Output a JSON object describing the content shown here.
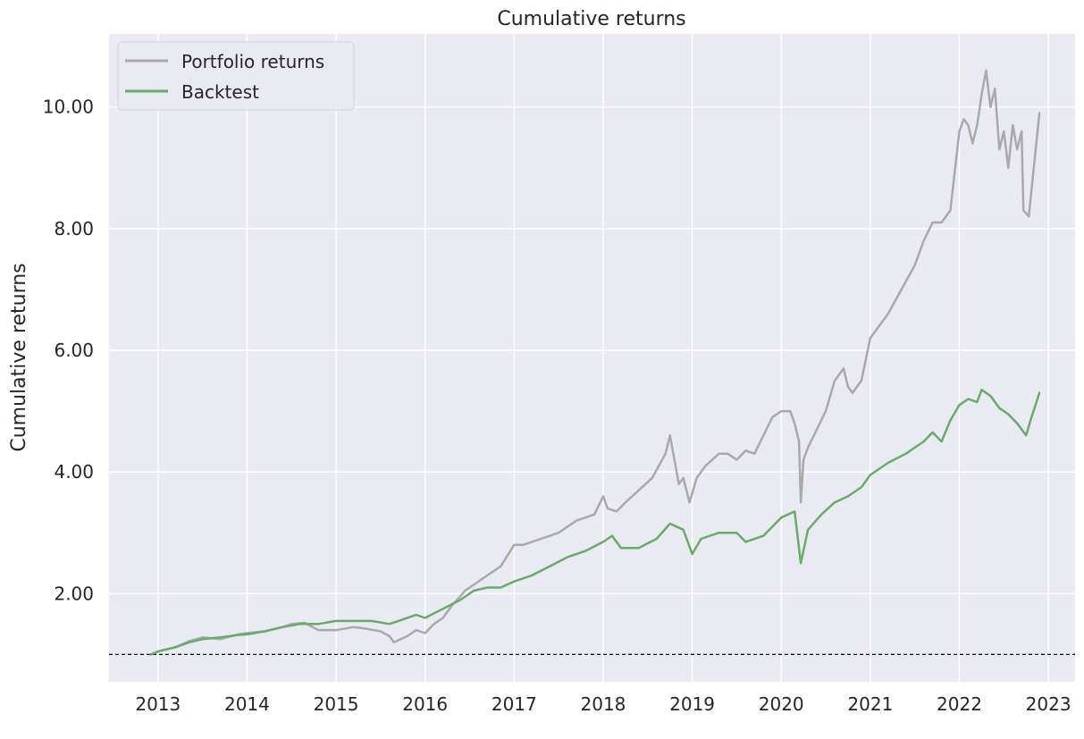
{
  "chart_data": {
    "type": "line",
    "title": "Cumulative returns",
    "xlabel": "",
    "ylabel": "Cumulative returns",
    "xlim": [
      2012.45,
      2023.3
    ],
    "ylim": [
      0.55,
      11.2
    ],
    "xticks": [
      2013,
      2014,
      2015,
      2016,
      2017,
      2018,
      2019,
      2020,
      2021,
      2022,
      2023
    ],
    "xtick_labels": [
      "2013",
      "2014",
      "2015",
      "2016",
      "2017",
      "2018",
      "2019",
      "2020",
      "2021",
      "2022",
      "2023"
    ],
    "yticks": [
      2,
      4,
      6,
      8,
      10
    ],
    "ytick_labels": [
      "2.00",
      "4.00",
      "6.00",
      "8.00",
      "10.00"
    ],
    "grid": true,
    "legend": "top-left",
    "baseline": 1.0,
    "series": [
      {
        "name": "Portfolio returns",
        "color": "#a9a9a9",
        "x": [
          2012.92,
          2013.0,
          2013.2,
          2013.35,
          2013.5,
          2013.7,
          2013.9,
          2014.0,
          2014.2,
          2014.4,
          2014.5,
          2014.65,
          2014.8,
          2015.0,
          2015.2,
          2015.35,
          2015.5,
          2015.6,
          2015.65,
          2015.8,
          2015.9,
          2016.0,
          2016.1,
          2016.2,
          2016.3,
          2016.45,
          2016.55,
          2016.7,
          2016.85,
          2017.0,
          2017.1,
          2017.3,
          2017.5,
          2017.7,
          2017.9,
          2018.0,
          2018.05,
          2018.15,
          2018.25,
          2018.4,
          2018.55,
          2018.7,
          2018.75,
          2018.8,
          2018.85,
          2018.9,
          2018.97,
          2019.05,
          2019.15,
          2019.3,
          2019.4,
          2019.5,
          2019.6,
          2019.7,
          2019.8,
          2019.9,
          2020.0,
          2020.1,
          2020.15,
          2020.2,
          2020.22,
          2020.25,
          2020.3,
          2020.4,
          2020.5,
          2020.6,
          2020.7,
          2020.75,
          2020.8,
          2020.9,
          2021.0,
          2021.1,
          2021.2,
          2021.35,
          2021.5,
          2021.6,
          2021.7,
          2021.8,
          2021.9,
          2022.0,
          2022.05,
          2022.1,
          2022.15,
          2022.2,
          2022.25,
          2022.3,
          2022.35,
          2022.4,
          2022.45,
          2022.5,
          2022.55,
          2022.6,
          2022.65,
          2022.7,
          2022.72,
          2022.78,
          2022.85,
          2022.9
        ],
        "values": [
          1.0,
          1.05,
          1.12,
          1.22,
          1.28,
          1.25,
          1.33,
          1.35,
          1.38,
          1.45,
          1.5,
          1.52,
          1.4,
          1.4,
          1.45,
          1.42,
          1.38,
          1.3,
          1.2,
          1.3,
          1.4,
          1.35,
          1.5,
          1.6,
          1.8,
          2.05,
          2.15,
          2.3,
          2.45,
          2.8,
          2.8,
          2.9,
          3.0,
          3.2,
          3.3,
          3.6,
          3.4,
          3.35,
          3.5,
          3.7,
          3.9,
          4.3,
          4.6,
          4.2,
          3.8,
          3.9,
          3.5,
          3.9,
          4.1,
          4.3,
          4.3,
          4.2,
          4.35,
          4.3,
          4.6,
          4.9,
          5.0,
          5.0,
          4.8,
          4.5,
          3.5,
          4.2,
          4.4,
          4.7,
          5.0,
          5.5,
          5.7,
          5.4,
          5.3,
          5.5,
          6.2,
          6.4,
          6.6,
          7.0,
          7.4,
          7.8,
          8.1,
          8.1,
          8.3,
          9.6,
          9.8,
          9.7,
          9.4,
          9.7,
          10.2,
          10.6,
          10.0,
          10.3,
          9.3,
          9.6,
          9.0,
          9.7,
          9.3,
          9.6,
          8.3,
          8.2,
          9.2,
          9.9
        ]
      },
      {
        "name": "Backtest",
        "color": "#6aaa6a",
        "x": [
          2012.92,
          2013.0,
          2013.2,
          2013.35,
          2013.5,
          2013.7,
          2013.9,
          2014.0,
          2014.2,
          2014.4,
          2014.6,
          2014.8,
          2015.0,
          2015.2,
          2015.4,
          2015.6,
          2015.7,
          2015.9,
          2016.0,
          2016.2,
          2016.4,
          2016.55,
          2016.7,
          2016.85,
          2017.0,
          2017.2,
          2017.4,
          2017.6,
          2017.8,
          2018.0,
          2018.1,
          2018.2,
          2018.4,
          2018.6,
          2018.75,
          2018.9,
          2019.0,
          2019.1,
          2019.3,
          2019.5,
          2019.6,
          2019.8,
          2020.0,
          2020.15,
          2020.22,
          2020.3,
          2020.45,
          2020.6,
          2020.75,
          2020.9,
          2021.0,
          2021.2,
          2021.4,
          2021.6,
          2021.7,
          2021.8,
          2021.9,
          2022.0,
          2022.1,
          2022.2,
          2022.25,
          2022.35,
          2022.45,
          2022.55,
          2022.65,
          2022.75,
          2022.8,
          2022.9
        ],
        "values": [
          1.0,
          1.05,
          1.12,
          1.2,
          1.25,
          1.28,
          1.32,
          1.33,
          1.38,
          1.45,
          1.5,
          1.5,
          1.55,
          1.55,
          1.55,
          1.5,
          1.55,
          1.65,
          1.6,
          1.75,
          1.9,
          2.05,
          2.1,
          2.1,
          2.2,
          2.3,
          2.45,
          2.6,
          2.7,
          2.85,
          2.95,
          2.75,
          2.75,
          2.9,
          3.15,
          3.05,
          2.65,
          2.9,
          3.0,
          3.0,
          2.85,
          2.95,
          3.25,
          3.35,
          2.5,
          3.05,
          3.3,
          3.5,
          3.6,
          3.75,
          3.95,
          4.15,
          4.3,
          4.5,
          4.65,
          4.5,
          4.85,
          5.1,
          5.2,
          5.15,
          5.35,
          5.25,
          5.05,
          4.95,
          4.8,
          4.6,
          4.85,
          5.3
        ]
      }
    ]
  }
}
